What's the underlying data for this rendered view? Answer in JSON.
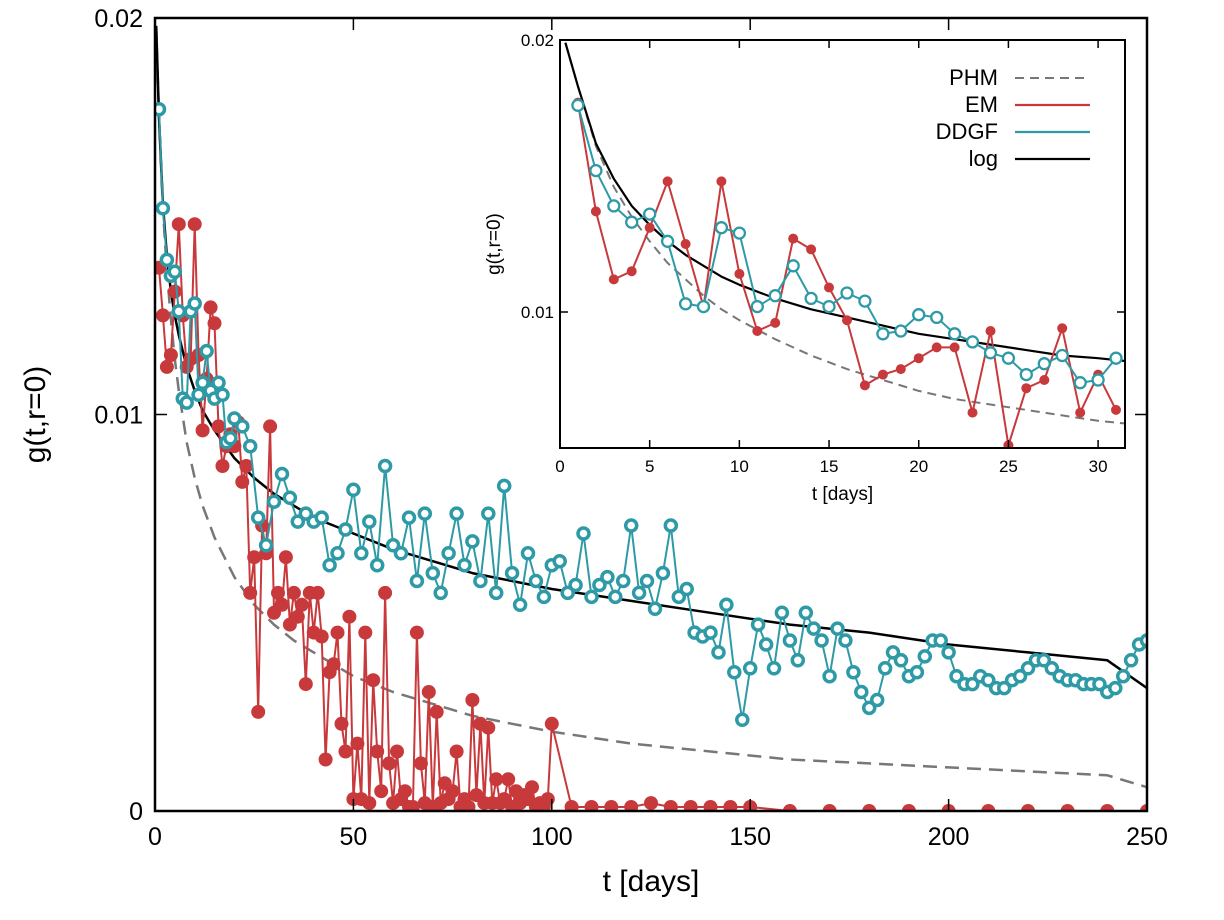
{
  "chart_data": [
    {
      "id": "main",
      "type": "line",
      "xlabel": "t [days]",
      "ylabel": "g(t,r=0)",
      "xlim": [
        0,
        250
      ],
      "ylim": [
        0,
        0.02
      ],
      "x_ticks": [
        0,
        50,
        100,
        150,
        200,
        250
      ],
      "y_ticks": [
        0,
        0.01,
        0.02
      ],
      "x_tick_labels": [
        "0",
        "50",
        "100",
        "150",
        "200",
        "250"
      ],
      "y_tick_labels": [
        "0",
        "0.01",
        "0.02"
      ],
      "grid": false,
      "series": [
        {
          "name": "PHM",
          "style": "dashed",
          "color": "#777777",
          "x": [
            0.3,
            1,
            2,
            3,
            4,
            5,
            6,
            8,
            10,
            12,
            15,
            20,
            25,
            30,
            35,
            40,
            50,
            60,
            70,
            80,
            90,
            100,
            120,
            140,
            160,
            180,
            200,
            220,
            240,
            250
          ],
          "y": [
            0.0198,
            0.0175,
            0.0152,
            0.0136,
            0.0124,
            0.0114,
            0.0106,
            0.0093,
            0.0084,
            0.0077,
            0.0069,
            0.0059,
            0.0052,
            0.0047,
            0.0043,
            0.004,
            0.0034,
            0.003,
            0.0027,
            0.0024,
            0.0022,
            0.002,
            0.0017,
            0.0015,
            0.0013,
            0.0012,
            0.0011,
            0.001,
            0.0009,
            0.0006
          ]
        },
        {
          "name": "EM",
          "style": "line+filled-circles",
          "color": "#c8393c",
          "x": [
            1,
            2,
            3,
            4,
            5,
            6,
            7,
            8,
            9,
            10,
            11,
            12,
            13,
            14,
            15,
            16,
            17,
            18,
            19,
            20,
            21,
            22,
            23,
            24,
            25,
            26,
            27,
            28,
            29,
            30,
            31,
            32,
            33,
            34,
            35,
            36,
            37,
            38,
            39,
            40,
            41,
            42,
            43,
            44,
            45,
            46,
            47,
            48,
            49,
            50,
            51,
            52,
            53,
            54,
            55,
            56,
            57,
            58,
            59,
            60,
            61,
            62,
            63,
            64,
            65,
            66,
            67,
            68,
            69,
            70,
            71,
            72,
            73,
            74,
            75,
            76,
            77,
            78,
            79,
            80,
            81,
            82,
            83,
            84,
            85,
            86,
            87,
            88,
            89,
            90,
            91,
            92,
            93,
            94,
            95,
            96,
            97,
            98,
            99,
            100,
            105,
            110,
            115,
            120,
            125,
            130,
            135,
            140,
            145,
            150,
            160,
            170,
            180,
            190,
            200,
            210,
            220,
            230,
            240,
            250
          ],
          "y": [
            0.0137,
            0.0125,
            0.0112,
            0.0115,
            0.0131,
            0.0148,
            0.0125,
            0.0112,
            0.0114,
            0.0148,
            0.0115,
            0.0096,
            0.0109,
            0.0127,
            0.0123,
            0.0097,
            0.0087,
            0.0092,
            0.0095,
            0.0092,
            0.0098,
            0.0083,
            0.0087,
            0.0055,
            0.0064,
            0.0025,
            0.0072,
            0.0065,
            0.0097,
            0.005,
            0.0055,
            0.0052,
            0.0064,
            0.0047,
            0.0055,
            0.0049,
            0.0052,
            0.0032,
            0.0055,
            0.0045,
            0.0055,
            0.0044,
            0.0013,
            0.0035,
            0.0037,
            0.0045,
            0.0022,
            0.0015,
            0.0049,
            0.0003,
            0.0017,
            0.0003,
            0.0045,
            0.0002,
            0.0033,
            0.0015,
            0.0005,
            0.0055,
            0.0012,
            0.0002,
            0.0015,
            0.0003,
            0.0005,
            0.0001,
            0.0001,
            0.0045,
            0.0012,
            0.0002,
            0.003,
            0.0001,
            0.0025,
            0.0002,
            0.0007,
            0.0003,
            0.0005,
            0.0015,
            0.0001,
            0.0003,
            0.0001,
            0.0028,
            0.0004,
            0.0022,
            0.0002,
            0.0021,
            0.0002,
            0.0008,
            0.0002,
            0.0003,
            0.0008,
            0.0001,
            0.0005,
            0.0002,
            0.0004,
            0.0003,
            0.0006,
            0.0001,
            0.0002,
            0.0001,
            0.0003,
            0.0022,
            0.0001,
            0.0001,
            0.0001,
            0.0001,
            0.0002,
            0.0001,
            0.0001,
            0.0001,
            0.0001,
            0.0001,
            0.0,
            0.0,
            0.0,
            0.0,
            0.0,
            0.0,
            0.0,
            0.0,
            0.0,
            0.0
          ]
        },
        {
          "name": "DDGF",
          "style": "line+open-circles",
          "color": "#2e9aa6",
          "x": [
            1,
            2,
            3,
            4,
            5,
            6,
            7,
            8,
            9,
            10,
            11,
            12,
            13,
            14,
            15,
            16,
            17,
            18,
            19,
            20,
            22,
            24,
            26,
            28,
            30,
            32,
            34,
            36,
            38,
            40,
            42,
            44,
            46,
            48,
            50,
            52,
            54,
            56,
            58,
            60,
            62,
            64,
            66,
            68,
            70,
            72,
            74,
            76,
            78,
            80,
            82,
            84,
            86,
            88,
            90,
            92,
            94,
            96,
            98,
            100,
            102,
            104,
            106,
            108,
            110,
            112,
            114,
            116,
            118,
            120,
            122,
            124,
            126,
            128,
            130,
            132,
            134,
            136,
            138,
            140,
            142,
            144,
            146,
            148,
            150,
            152,
            154,
            156,
            158,
            160,
            162,
            164,
            166,
            168,
            170,
            172,
            174,
            176,
            178,
            180,
            182,
            184,
            186,
            188,
            190,
            192,
            194,
            196,
            198,
            200,
            202,
            204,
            206,
            208,
            210,
            212,
            214,
            216,
            218,
            220,
            222,
            224,
            226,
            228,
            230,
            232,
            234,
            236,
            238,
            240,
            242,
            244,
            246,
            248,
            250
          ],
          "y": [
            0.0177,
            0.0152,
            0.0139,
            0.0135,
            0.0136,
            0.0126,
            0.0104,
            0.0103,
            0.0126,
            0.0128,
            0.0105,
            0.0108,
            0.0116,
            0.0106,
            0.0104,
            0.0108,
            0.0105,
            0.0093,
            0.0094,
            0.0099,
            0.0097,
            0.0092,
            0.0074,
            0.0067,
            0.0078,
            0.0085,
            0.0079,
            0.0073,
            0.0075,
            0.0073,
            0.0074,
            0.0062,
            0.0065,
            0.0071,
            0.0081,
            0.0065,
            0.0073,
            0.0062,
            0.0087,
            0.0067,
            0.0065,
            0.0074,
            0.0058,
            0.0075,
            0.006,
            0.0055,
            0.0065,
            0.0075,
            0.0062,
            0.0068,
            0.0058,
            0.0075,
            0.0055,
            0.0082,
            0.006,
            0.0052,
            0.0065,
            0.0058,
            0.0054,
            0.0062,
            0.0063,
            0.0055,
            0.0057,
            0.007,
            0.0054,
            0.0057,
            0.0059,
            0.0054,
            0.0058,
            0.0072,
            0.0055,
            0.0058,
            0.0051,
            0.006,
            0.0072,
            0.0054,
            0.0056,
            0.0045,
            0.0044,
            0.0045,
            0.004,
            0.0052,
            0.0035,
            0.0023,
            0.0036,
            0.0047,
            0.0042,
            0.0036,
            0.005,
            0.0043,
            0.0038,
            0.005,
            0.0046,
            0.0043,
            0.0034,
            0.0046,
            0.0043,
            0.0035,
            0.003,
            0.0026,
            0.0028,
            0.0036,
            0.004,
            0.0038,
            0.0034,
            0.0035,
            0.0039,
            0.0043,
            0.0043,
            0.004,
            0.0034,
            0.0032,
            0.0032,
            0.0034,
            0.0033,
            0.0031,
            0.0031,
            0.0033,
            0.0034,
            0.0036,
            0.0038,
            0.0038,
            0.0036,
            0.0034,
            0.0033,
            0.0033,
            0.0032,
            0.0032,
            0.0032,
            0.003,
            0.0031,
            0.0034,
            0.0038,
            0.0042,
            0.0043
          ]
        },
        {
          "name": "log",
          "style": "solid",
          "color": "#000000",
          "x": [
            0.3,
            1,
            2,
            3,
            4,
            5,
            6,
            8,
            10,
            12,
            15,
            20,
            25,
            30,
            40,
            50,
            60,
            70,
            80,
            90,
            100,
            120,
            140,
            160,
            180,
            200,
            220,
            240,
            250
          ],
          "y": [
            0.0198,
            0.0175,
            0.0153,
            0.014,
            0.0131,
            0.0125,
            0.012,
            0.0112,
            0.0106,
            0.0101,
            0.0096,
            0.0089,
            0.0084,
            0.008,
            0.0074,
            0.007,
            0.0066,
            0.0063,
            0.006,
            0.0058,
            0.0056,
            0.0053,
            0.005,
            0.0047,
            0.0045,
            0.0042,
            0.004,
            0.0038,
            0.0031
          ]
        }
      ]
    },
    {
      "id": "inset",
      "type": "line",
      "xlabel": "t [days]",
      "ylabel": "g(t,r=0)",
      "xlim": [
        0,
        31.5
      ],
      "ylim": [
        0.005,
        0.02
      ],
      "x_ticks": [
        0,
        5,
        10,
        15,
        20,
        25,
        30
      ],
      "y_ticks": [
        0.01,
        0.02
      ],
      "x_tick_labels": [
        "0",
        "5",
        "10",
        "15",
        "20",
        "25",
        "30"
      ],
      "y_tick_labels": [
        "0.01",
        "0.02"
      ],
      "legend": {
        "position": "top-right",
        "entries": [
          "PHM",
          "EM",
          "DDGF",
          "log"
        ]
      },
      "grid": false,
      "series": [
        {
          "name": "PHM",
          "style": "dashed",
          "color": "#777777",
          "x": [
            0.3,
            1,
            2,
            3,
            4,
            5,
            6,
            7,
            8,
            9,
            10,
            12,
            14,
            16,
            18,
            20,
            22,
            24,
            26,
            28,
            30,
            31.5
          ],
          "y": [
            0.0199,
            0.0183,
            0.0161,
            0.0146,
            0.0135,
            0.0126,
            0.0118,
            0.0112,
            0.0106,
            0.0101,
            0.0097,
            0.009,
            0.0084,
            0.0079,
            0.0075,
            0.0071,
            0.0068,
            0.0066,
            0.0064,
            0.0062,
            0.006,
            0.0059
          ]
        },
        {
          "name": "EM",
          "style": "line+filled-circles",
          "color": "#c8393c",
          "x": [
            1,
            2,
            3,
            4,
            5,
            6,
            7,
            8,
            9,
            10,
            11,
            12,
            13,
            14,
            15,
            16,
            17,
            18,
            19,
            20,
            21,
            22,
            23,
            24,
            25,
            26,
            27,
            28,
            29,
            30,
            31
          ],
          "y": [
            0.0177,
            0.0137,
            0.0112,
            0.0115,
            0.0131,
            0.0148,
            0.0125,
            0.0102,
            0.0148,
            0.0114,
            0.0093,
            0.0096,
            0.0127,
            0.0123,
            0.0109,
            0.0097,
            0.0073,
            0.0077,
            0.0079,
            0.0083,
            0.0087,
            0.0087,
            0.0063,
            0.0093,
            0.0051,
            0.0072,
            0.0075,
            0.0094,
            0.0063,
            0.0077,
            0.0064
          ]
        },
        {
          "name": "DDGF",
          "style": "line+open-circles",
          "color": "#2e9aa6",
          "x": [
            1,
            2,
            3,
            4,
            5,
            6,
            7,
            8,
            9,
            10,
            11,
            12,
            13,
            14,
            15,
            16,
            17,
            18,
            19,
            20,
            21,
            22,
            23,
            24,
            25,
            26,
            27,
            28,
            29,
            30,
            31
          ],
          "y": [
            0.0176,
            0.0152,
            0.0139,
            0.0133,
            0.0136,
            0.0126,
            0.0103,
            0.0102,
            0.0131,
            0.0129,
            0.0102,
            0.0106,
            0.0117,
            0.0105,
            0.0102,
            0.0107,
            0.0104,
            0.0092,
            0.0093,
            0.0099,
            0.0098,
            0.0092,
            0.0089,
            0.0085,
            0.0083,
            0.0077,
            0.0081,
            0.0084,
            0.0074,
            0.0075,
            0.0083
          ]
        },
        {
          "name": "log",
          "style": "solid",
          "color": "#000000",
          "x": [
            0.3,
            1,
            2,
            3,
            4,
            5,
            6,
            7,
            8,
            9,
            10,
            12,
            14,
            16,
            18,
            20,
            22,
            24,
            26,
            28,
            30,
            31.5
          ],
          "y": [
            0.0199,
            0.0183,
            0.0162,
            0.0149,
            0.0139,
            0.0132,
            0.0126,
            0.0121,
            0.0117,
            0.0113,
            0.011,
            0.0105,
            0.0101,
            0.0098,
            0.0095,
            0.0092,
            0.009,
            0.0088,
            0.0086,
            0.0084,
            0.0083,
            0.0082
          ]
        }
      ]
    }
  ]
}
